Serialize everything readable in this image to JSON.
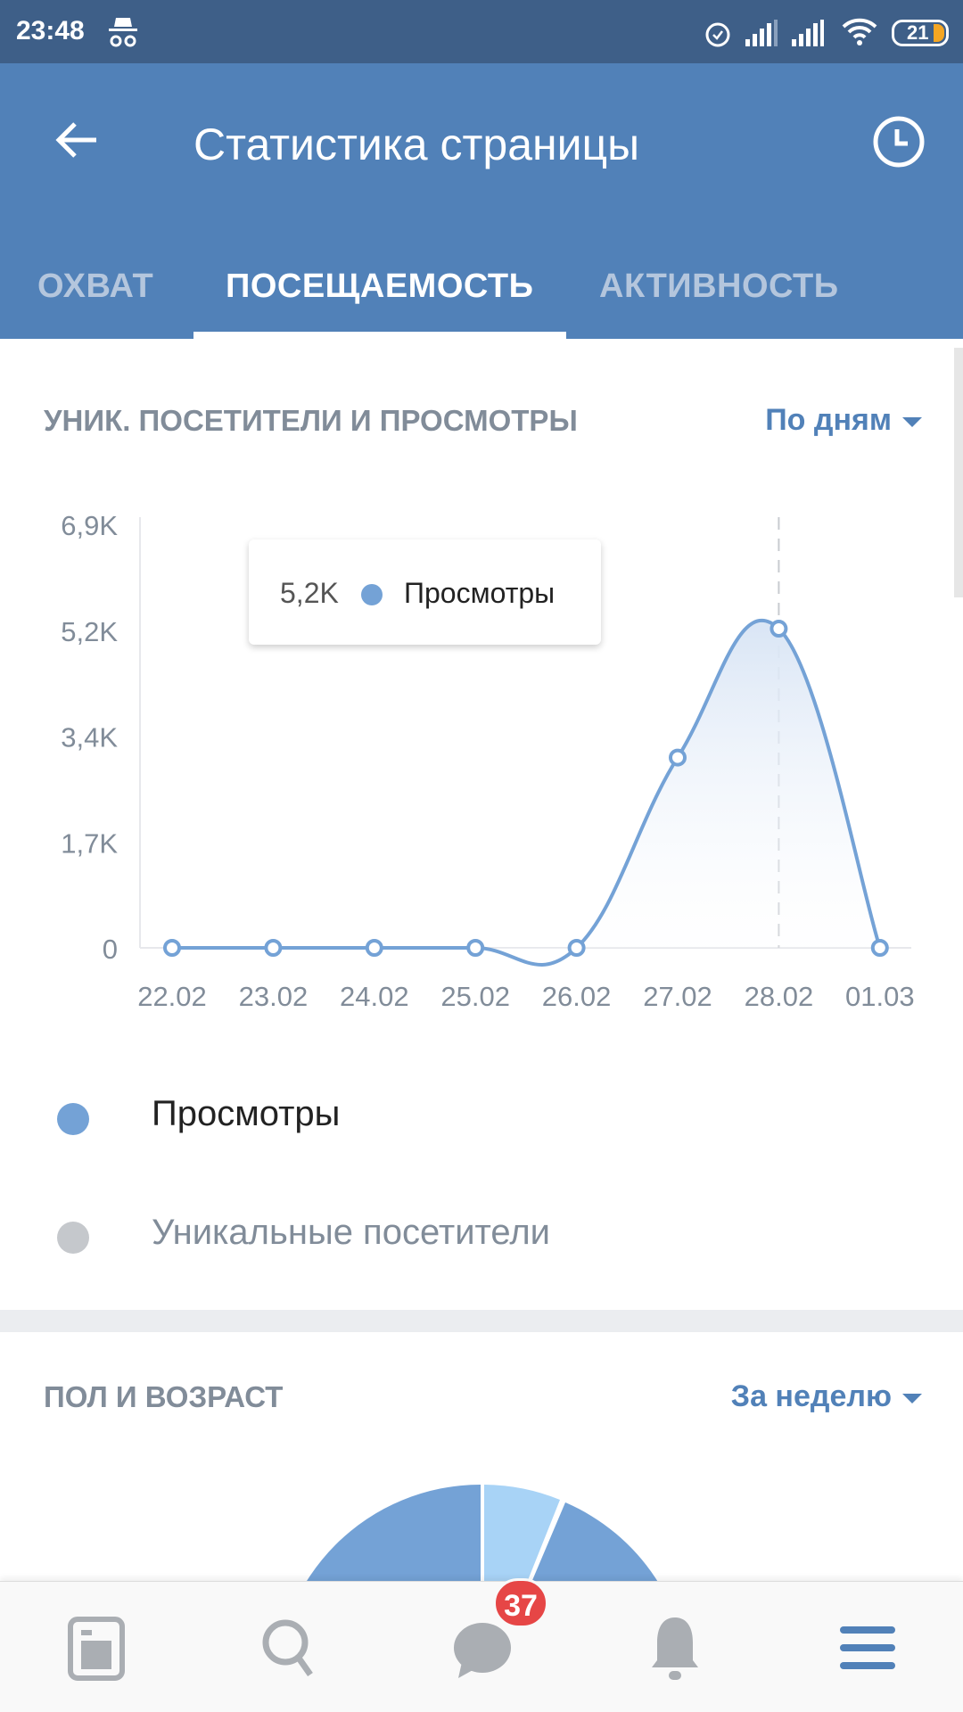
{
  "status_bar": {
    "time": "23:48",
    "battery": "21"
  },
  "header": {
    "title": "Статистика страницы",
    "back_icon": "arrow-left-icon",
    "history_icon": "clock-icon"
  },
  "tabs": [
    {
      "label": "ОХВАТ",
      "active": false
    },
    {
      "label": "ПОСЕЩАЕМОСТЬ",
      "active": true
    },
    {
      "label": "АКТИВНОСТЬ",
      "active": false
    }
  ],
  "visitors_section": {
    "title": "УНИК. ПОСЕТИТЕЛИ И ПРОСМОТРЫ",
    "period": "По дням"
  },
  "tooltip": {
    "value": "5,2K",
    "series": "Просмотры"
  },
  "legend": [
    {
      "label": "Просмотры",
      "color": "#74a2d6",
      "active": true
    },
    {
      "label": "Уникальные посетители",
      "color": "#c5c8cc",
      "active": false
    }
  ],
  "chart_data": {
    "type": "area",
    "categories": [
      "22.02",
      "23.02",
      "24.02",
      "25.02",
      "26.02",
      "27.02",
      "28.02",
      "01.03"
    ],
    "series": [
      {
        "name": "Просмотры",
        "values": [
          0,
          0,
          0,
          0,
          0,
          3100,
          5200,
          0
        ],
        "color": "#74a2d6"
      }
    ],
    "y_ticks": [
      "0",
      "1,7K",
      "3,4K",
      "5,2K",
      "6,9K"
    ],
    "y_tick_values": [
      0,
      1725,
      3450,
      5175,
      6900
    ],
    "ylim": [
      0,
      6900
    ],
    "highlight_category": "28.02",
    "grid": false
  },
  "gender_age_section": {
    "title": "ПОЛ И ВОЗРАСТ",
    "period": "За неделю"
  },
  "bottom_nav": {
    "messages_badge": "37",
    "items": [
      "news",
      "search",
      "messages",
      "notifications",
      "menu"
    ]
  },
  "colors": {
    "header": "#5181b8",
    "statusbar": "#3e5f88",
    "accent": "#5181b8",
    "badge": "#e64646"
  }
}
